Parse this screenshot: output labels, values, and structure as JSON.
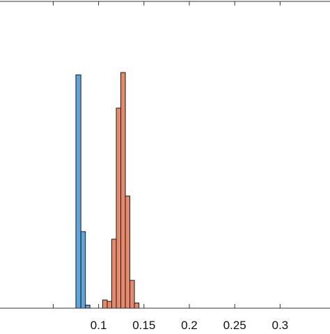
{
  "chart_data": {
    "type": "bar",
    "title": "",
    "xlabel": "",
    "ylabel": "",
    "xlim": [
      -0.07,
      0.355
    ],
    "grid": false,
    "legend": "none",
    "tick_labels": [
      "0.1",
      "0.15",
      "0.2",
      "0.25",
      "0.3"
    ],
    "ticks": [
      0.1,
      0.15,
      0.2,
      0.25,
      0.3
    ],
    "bin_width": 0.005,
    "colors": {
      "series_1": "#5DA5DA",
      "series_2": "#E8896A",
      "edge": "#1a1a1a",
      "axis": "#333333"
    },
    "series": [
      {
        "bins": [
          {
            "x0": 0.075,
            "x1": 0.0805,
            "height": 0.99
          },
          {
            "x0": 0.0805,
            "x1": 0.0855,
            "height": 0.325
          },
          {
            "x0": 0.0855,
            "x1": 0.0905,
            "height": 0.013
          }
        ]
      },
      {
        "bins": [
          {
            "x0": 0.1045,
            "x1": 0.1095,
            "height": 0.035
          },
          {
            "x0": 0.1095,
            "x1": 0.1145,
            "height": 0.029
          },
          {
            "x0": 0.1145,
            "x1": 0.1195,
            "height": 0.293
          },
          {
            "x0": 0.1195,
            "x1": 0.1245,
            "height": 0.849
          },
          {
            "x0": 0.1245,
            "x1": 0.1295,
            "height": 1.0
          },
          {
            "x0": 0.1295,
            "x1": 0.1345,
            "height": 0.476
          },
          {
            "x0": 0.1345,
            "x1": 0.1395,
            "height": 0.118
          },
          {
            "x0": 0.1395,
            "x1": 0.1445,
            "height": 0.022
          }
        ]
      }
    ]
  }
}
